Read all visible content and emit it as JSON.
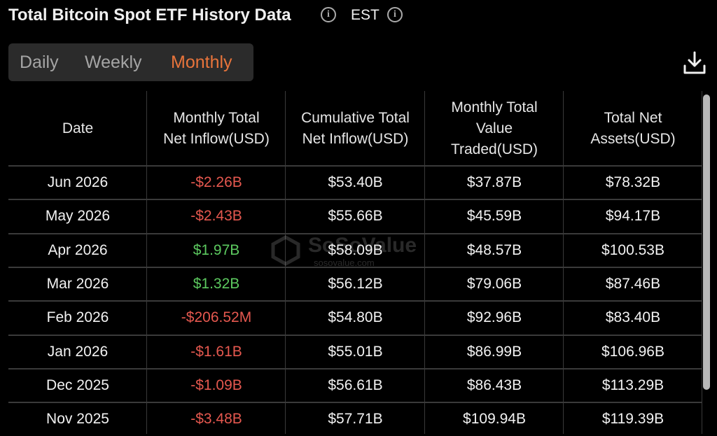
{
  "header": {
    "title": "Total Bitcoin Spot ETF History Data",
    "timezone": "EST"
  },
  "tabs": {
    "items": [
      "Daily",
      "Weekly",
      "Monthly"
    ],
    "active": 2
  },
  "watermark": {
    "brand": "SoSoValue",
    "site": "sosovalue.com"
  },
  "table": {
    "columns": [
      [
        "Date"
      ],
      [
        "Monthly Total",
        "Net Inflow(USD)"
      ],
      [
        "Cumulative Total",
        "Net Inflow(USD)"
      ],
      [
        "Monthly Total",
        "Value",
        "Traded(USD)"
      ],
      [
        "Total Net",
        "Assets(USD)"
      ]
    ],
    "rows": [
      [
        "Jun 2026",
        "-$2.26B",
        "$53.40B",
        "$37.87B",
        "$78.32B"
      ],
      [
        "May 2026",
        "-$2.43B",
        "$55.66B",
        "$45.59B",
        "$94.17B"
      ],
      [
        "Apr 2026",
        "$1.97B",
        "$58.09B",
        "$48.57B",
        "$100.53B"
      ],
      [
        "Mar 2026",
        "$1.32B",
        "$56.12B",
        "$79.06B",
        "$87.46B"
      ],
      [
        "Feb 2026",
        "-$206.52M",
        "$54.80B",
        "$92.96B",
        "$83.40B"
      ],
      [
        "Jan 2026",
        "-$1.61B",
        "$55.01B",
        "$86.99B",
        "$106.96B"
      ],
      [
        "Dec 2025",
        "-$1.09B",
        "$56.61B",
        "$86.43B",
        "$113.29B"
      ],
      [
        "Nov 2025",
        "-$3.48B",
        "$57.71B",
        "$109.94B",
        "$119.39B"
      ]
    ]
  }
}
